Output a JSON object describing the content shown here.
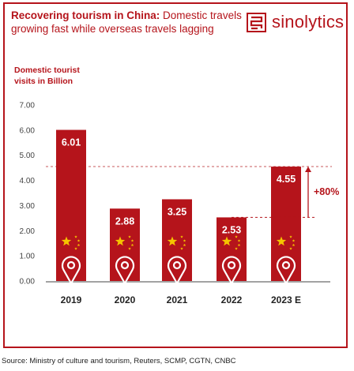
{
  "header": {
    "title_bold": "Recovering tourism in China:",
    "title_rest": "Domestic travels growing fast while overseas travels lagging",
    "brand": "sinolytics"
  },
  "source": "Source: Ministry of culture and tourism, Reuters, SCMP, CGTN, CNBC",
  "colors": {
    "bar": "#b5141b",
    "accent": "#b5141b",
    "star": "#f5c400",
    "axis": "#444444"
  },
  "chart_data": {
    "type": "bar",
    "ylabel": "Domestic tourist visits in Billion",
    "ylim": [
      0,
      7
    ],
    "yticks": [
      "0.00",
      "1.00",
      "2.00",
      "3.00",
      "4.00",
      "5.00",
      "6.00",
      "7.00"
    ],
    "categories": [
      "2019",
      "2020",
      "2021",
      "2022",
      "2023 E"
    ],
    "values": [
      6.01,
      2.88,
      3.25,
      2.53,
      4.55
    ],
    "value_labels": [
      "6.01",
      "2.88",
      "3.25",
      "2.53",
      "4.55"
    ],
    "annotation": "+80%",
    "grid": false
  }
}
